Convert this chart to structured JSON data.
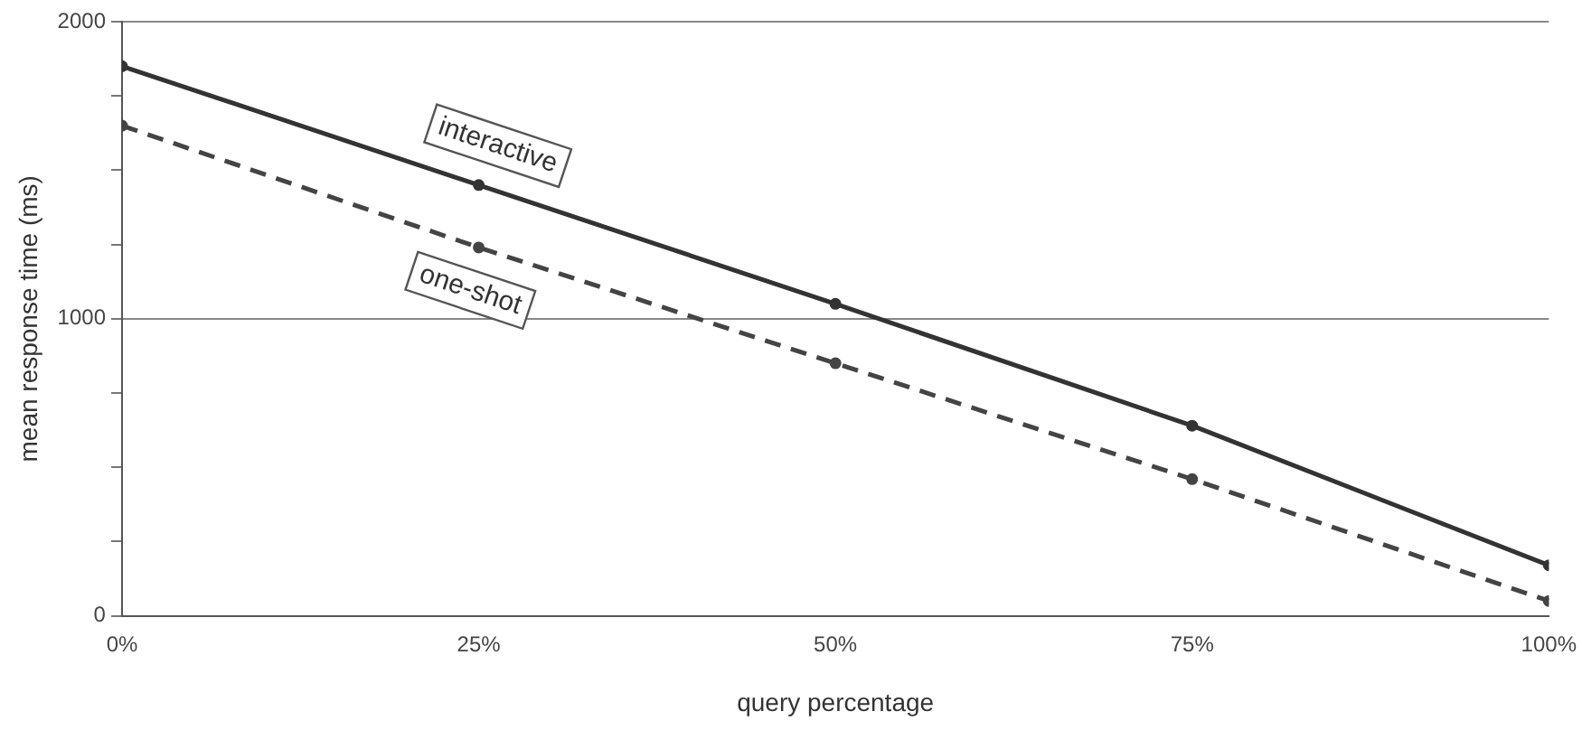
{
  "chart_data": {
    "type": "line",
    "xlabel": "query percentage",
    "ylabel": "mean response time (ms)",
    "x": [
      0,
      25,
      50,
      75,
      100
    ],
    "series": [
      {
        "name": "interactive",
        "color": "#333333",
        "values": [
          1850,
          1450,
          1050,
          640,
          170
        ],
        "line_style": "solid"
      },
      {
        "name": "one-shot",
        "color": "#444444",
        "values": [
          1650,
          1240,
          850,
          460,
          50
        ],
        "line_style": "dashed"
      }
    ],
    "xlim": [
      0,
      100
    ],
    "xticks": [
      {
        "value": 0,
        "label": "0%"
      },
      {
        "value": 25,
        "label": "25%"
      },
      {
        "value": 50,
        "label": "50%"
      },
      {
        "value": 75,
        "label": "75%"
      },
      {
        "value": 100,
        "label": "100%"
      }
    ],
    "ylim": [
      0,
      2000
    ],
    "yticks": [
      0,
      {
        "value": 250,
        "label": null
      },
      {
        "value": 500,
        "label": null
      },
      {
        "value": 750,
        "label": null
      },
      1000,
      {
        "value": 1250,
        "label": null
      },
      {
        "value": 1500,
        "label": null
      },
      {
        "value": 1750,
        "label": null
      },
      2000
    ],
    "grid": "y",
    "legend": false,
    "marker": "circle"
  }
}
